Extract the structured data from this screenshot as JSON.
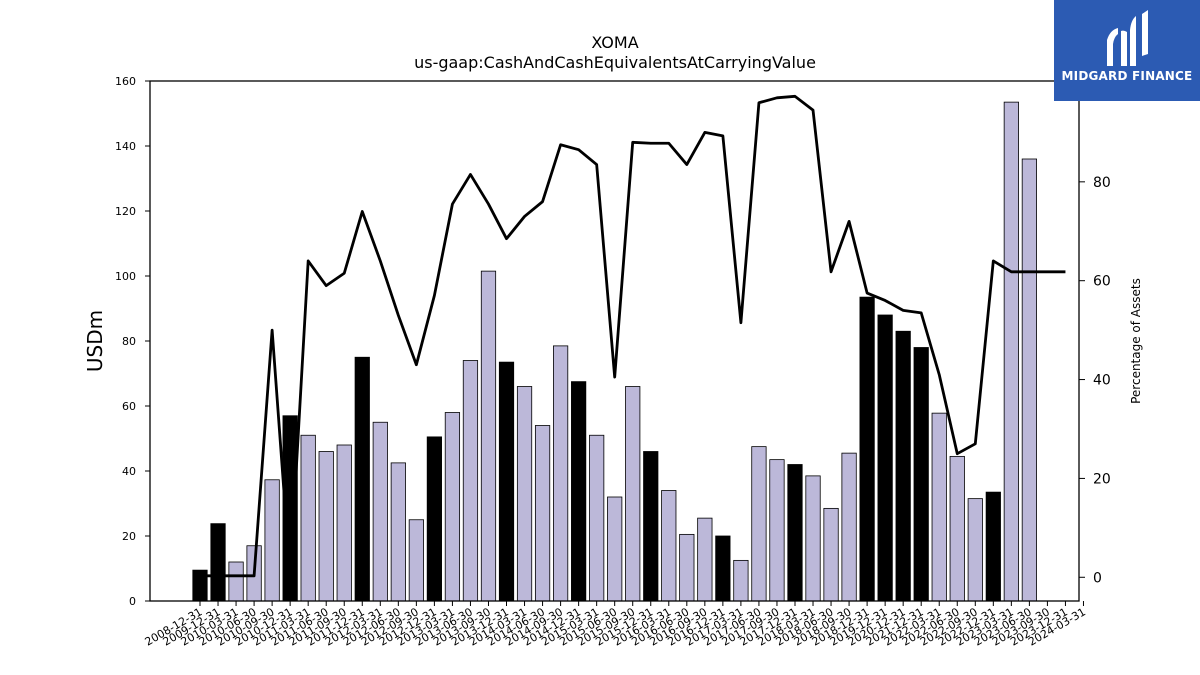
{
  "chart_data": {
    "type": "bar",
    "title": "XOMA",
    "subtitle": "us-gaap:CashAndCashEquivalentsAtCarryingValue",
    "ylabel": "USDm",
    "y2label": "Percentage of Assets",
    "ylim": [
      0,
      160
    ],
    "y2lim": [
      -4.8,
      100.4
    ],
    "yticks": [
      0,
      20,
      40,
      60,
      80,
      100,
      120,
      140,
      160
    ],
    "y2ticks": [
      0,
      20,
      40,
      60,
      80
    ],
    "grid": false,
    "colors": {
      "bar_q4": "#000000",
      "bar_other": "#bcb8d9",
      "line": "#000000"
    },
    "categories": [
      "2008-12-31",
      "2009-12-31",
      "2010-03-31",
      "2010-06-30",
      "2010-09-30",
      "2010-12-31",
      "2011-03-31",
      "2011-06-30",
      "2011-09-30",
      "2011-12-31",
      "2012-03-31",
      "2012-06-30",
      "2012-09-30",
      "2012-12-31",
      "2013-03-31",
      "2013-06-30",
      "2013-09-30",
      "2013-12-31",
      "2014-03-31",
      "2014-06-30",
      "2014-09-30",
      "2014-12-31",
      "2015-03-31",
      "2015-06-30",
      "2015-09-30",
      "2015-12-31",
      "2016-03-31",
      "2016-06-30",
      "2016-09-30",
      "2016-12-31",
      "2017-03-31",
      "2017-06-30",
      "2017-09-30",
      "2017-12-31",
      "2018-03-31",
      "2018-06-30",
      "2018-09-30",
      "2018-12-31",
      "2019-12-31",
      "2020-12-31",
      "2021-12-31",
      "2022-03-31",
      "2022-06-30",
      "2022-09-30",
      "2022-12-31",
      "2023-03-31",
      "2023-06-30",
      "2023-09-30",
      "2023-12-31",
      "2024-03-31"
    ],
    "series": [
      {
        "values": [
          9.5,
          23.8,
          12,
          17,
          37.3,
          57,
          51,
          46,
          48,
          75,
          55,
          42.5,
          25,
          50.5,
          58,
          74,
          101.5,
          73.5,
          66,
          54,
          78.5,
          67.5,
          51,
          32,
          66,
          46,
          34,
          20.5,
          25.5,
          20,
          12.5,
          47.5,
          43.5,
          42,
          38.5,
          28.5,
          45.5,
          93.5,
          88,
          83,
          78,
          57.8,
          44.5,
          31.5,
          33.5,
          153.5,
          136,
          0,
          0,
          0
        ]
      },
      {
        "axis": "right",
        "values": [
          0.3,
          0.3,
          0.3,
          0.3,
          50,
          0.3,
          64,
          59,
          61.5,
          74,
          64,
          53,
          43,
          57,
          75.5,
          81.5,
          75.5,
          68.5,
          73,
          76,
          87.5,
          86.5,
          83.5,
          40.5,
          88,
          87.8,
          87.8,
          83.5,
          90,
          89.3,
          51.5,
          96,
          97,
          97.3,
          94.5,
          61.8,
          72,
          57.5,
          56,
          54,
          53.5,
          41,
          25,
          27,
          64,
          61.8,
          61.8,
          61.8,
          61.8,
          61.8
        ]
      }
    ]
  }
}
